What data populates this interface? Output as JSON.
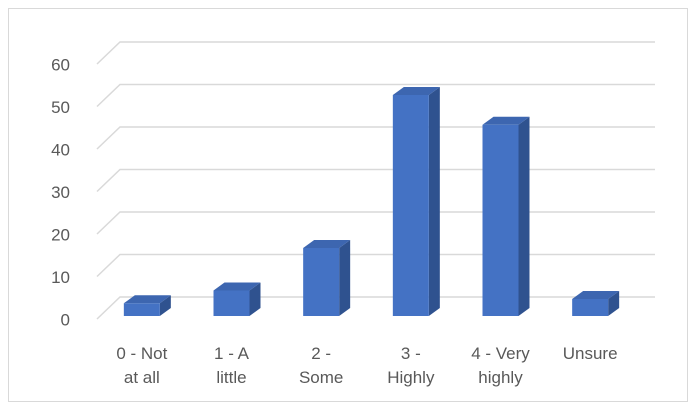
{
  "chart_data": {
    "type": "bar3d",
    "categories": [
      "0 - Not at all",
      "1 - A little",
      "2 - Some",
      "3 - Highly",
      "4 - Very highly",
      "Unsure"
    ],
    "values": [
      3,
      6,
      16,
      52,
      45,
      4
    ],
    "color": "#4472c4",
    "ylim": [
      0,
      60
    ],
    "yticks": [
      0,
      10,
      20,
      30,
      40,
      50,
      60
    ],
    "grid": true
  }
}
